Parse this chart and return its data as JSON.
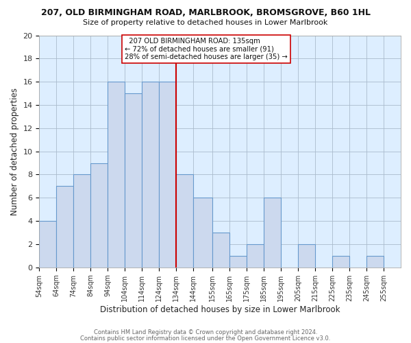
{
  "title": "207, OLD BIRMINGHAM ROAD, MARLBROOK, BROMSGROVE, B60 1HL",
  "subtitle": "Size of property relative to detached houses in Lower Marlbrook",
  "xlabel": "Distribution of detached houses by size in Lower Marlbrook",
  "ylabel": "Number of detached properties",
  "footer_line1": "Contains HM Land Registry data © Crown copyright and database right 2024.",
  "footer_line2": "Contains public sector information licensed under the Open Government Licence v3.0.",
  "bar_left_edges": [
    54,
    64,
    74,
    84,
    94,
    104,
    114,
    124,
    134,
    144,
    155,
    165,
    175,
    185,
    195,
    205,
    215,
    225,
    235,
    245
  ],
  "bar_heights": [
    4,
    7,
    8,
    9,
    16,
    15,
    16,
    16,
    8,
    6,
    3,
    1,
    2,
    6,
    0,
    2,
    0,
    1,
    0,
    1
  ],
  "bar_widths": [
    10,
    10,
    10,
    10,
    10,
    10,
    10,
    10,
    10,
    11,
    10,
    10,
    10,
    10,
    10,
    10,
    10,
    10,
    10,
    10
  ],
  "bar_color": "#ccd9ee",
  "bar_edge_color": "#6699cc",
  "x_tick_labels": [
    "54sqm",
    "64sqm",
    "74sqm",
    "84sqm",
    "94sqm",
    "104sqm",
    "114sqm",
    "124sqm",
    "134sqm",
    "144sqm",
    "155sqm",
    "165sqm",
    "175sqm",
    "185sqm",
    "195sqm",
    "205sqm",
    "215sqm",
    "225sqm",
    "235sqm",
    "245sqm",
    "255sqm"
  ],
  "x_tick_positions": [
    54,
    64,
    74,
    84,
    94,
    104,
    114,
    124,
    134,
    144,
    155,
    165,
    175,
    185,
    195,
    205,
    215,
    225,
    235,
    245,
    255
  ],
  "ylim": [
    0,
    20
  ],
  "xlim": [
    54,
    265
  ],
  "property_line_x": 134,
  "property_line_color": "#cc0000",
  "annotation_title": "207 OLD BIRMINGHAM ROAD: 135sqm",
  "annotation_line1": "← 72% of detached houses are smaller (91)",
  "annotation_line2": "28% of semi-detached houses are larger (35) →",
  "annotation_box_color": "#ffffff",
  "annotation_box_edge_color": "#cc0000",
  "grid_color": "#aabbcc",
  "bg_color": "#ffffff",
  "plot_bg_color": "#ddeeff"
}
